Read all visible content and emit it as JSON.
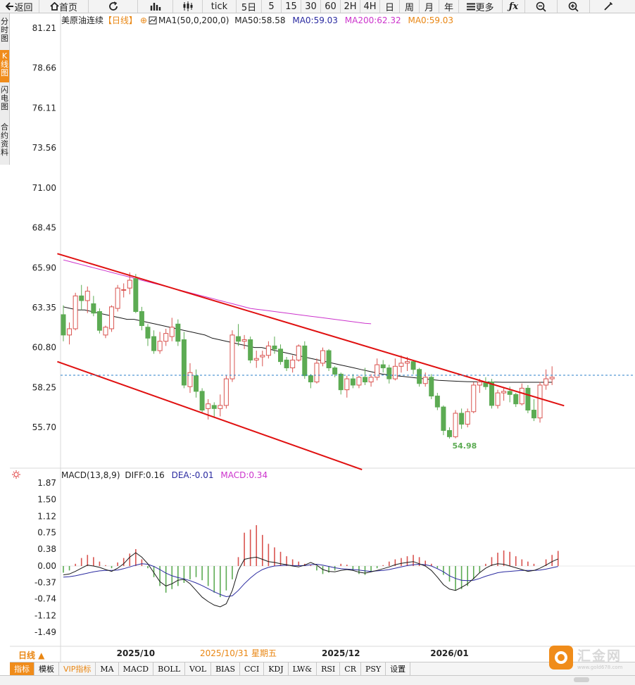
{
  "toolbar": {
    "back": "返回",
    "home": "首页",
    "tick": "tick",
    "day5": "5日",
    "m5": "5",
    "m15": "15",
    "m30": "30",
    "m60": "60",
    "h2": "2H",
    "h4": "4H",
    "day": "日",
    "week": "周",
    "month": "月",
    "year": "年",
    "more": "更多",
    "icons": [
      "back-arrow-icon",
      "home-icon",
      "refresh-icon",
      "bar-chart-icon",
      "candlestick-icon",
      "more-menu-icon",
      "function-icon",
      "zoom-out-icon",
      "zoom-in-icon",
      "draw-pen-icon"
    ]
  },
  "left_nav": [
    "分时图",
    "K线图",
    "闪电图",
    "合约资料"
  ],
  "header": {
    "instrument": "美原油连续",
    "period_tag": "【日线】",
    "ma_setting": "MA1(50,0,200,0)",
    "ma50": "MA50:58.58",
    "ma0_a": "MA0:59.03",
    "ma200": "MA200:62.32",
    "ma0_b": "MA0:59.03"
  },
  "macd_header": {
    "label": "MACD(13,8,9)",
    "diff": "DIFF:0.16",
    "dea": "DEA:-0.01",
    "macd": "MACD:0.34"
  },
  "bottom_tabs": [
    "指标",
    "模板",
    "VIP指标",
    "MA",
    "MACD",
    "BOLL",
    "VOL",
    "BIAS",
    "CCI",
    "KDJ",
    "LW&",
    "RSI",
    "CR",
    "PSY",
    "设置"
  ],
  "period_label": "日线 ▲",
  "logo": {
    "name": "汇金网",
    "url": "www.gold678.com"
  },
  "colors": {
    "up": "#d9534f",
    "down": "#5cab53",
    "ma50": "#1a1a1a",
    "ma200": "#cc33cc",
    "channel": "#e01010",
    "last_price": "#2a7fc9",
    "diff": "#1a1a1a",
    "dea": "#2a2aa0",
    "accent": "#f08c1a"
  },
  "chart_data": [
    {
      "type": "candlestick",
      "title": "美原油连续【日线】",
      "y_ticks": [
        "81.21",
        "78.66",
        "76.11",
        "73.56",
        "71.00",
        "68.45",
        "65.90",
        "63.35",
        "60.80",
        "58.25",
        "55.70"
      ],
      "ylim": [
        52.9,
        82.0
      ],
      "x_labels": [
        {
          "label": "2025/10",
          "index": 12
        },
        {
          "label": "2025/10/31 星期五",
          "index": 29
        },
        {
          "label": "2025/12",
          "index": 46
        },
        {
          "label": "2026/01",
          "index": 64
        }
      ],
      "ohlc": [
        [
          62.9,
          63.5,
          61.2,
          61.6
        ],
        [
          61.6,
          62.4,
          61.0,
          62.0
        ],
        [
          62.0,
          64.3,
          61.9,
          64.1
        ],
        [
          64.1,
          64.8,
          63.2,
          63.8
        ],
        [
          63.8,
          64.7,
          63.0,
          64.4
        ],
        [
          63.6,
          64.1,
          62.8,
          63.0
        ],
        [
          63.1,
          63.3,
          61.7,
          61.9
        ],
        [
          61.6,
          62.2,
          61.4,
          62.1
        ],
        [
          62.0,
          63.5,
          61.8,
          63.4
        ],
        [
          63.3,
          64.8,
          63.1,
          64.6
        ],
        [
          64.5,
          64.9,
          64.0,
          64.5
        ],
        [
          64.6,
          65.6,
          64.2,
          65.1
        ],
        [
          65.2,
          65.5,
          63.0,
          63.1
        ],
        [
          63.1,
          63.4,
          61.9,
          62.2
        ],
        [
          62.1,
          62.3,
          60.9,
          61.4
        ],
        [
          61.5,
          61.9,
          60.4,
          60.6
        ],
        [
          60.6,
          61.8,
          60.4,
          61.2
        ],
        [
          61.2,
          62.0,
          60.9,
          61.7
        ],
        [
          61.5,
          62.7,
          61.2,
          62.1
        ],
        [
          62.3,
          62.6,
          60.9,
          61.2
        ],
        [
          61.3,
          61.8,
          58.2,
          58.4
        ],
        [
          58.3,
          59.8,
          57.9,
          59.2
        ],
        [
          59.0,
          59.4,
          57.6,
          58.0
        ],
        [
          58.0,
          58.2,
          56.6,
          56.8
        ],
        [
          56.9,
          57.5,
          56.2,
          57.2
        ],
        [
          57.1,
          57.3,
          56.3,
          56.9
        ],
        [
          56.9,
          57.8,
          56.4,
          57.1
        ],
        [
          57.1,
          59.0,
          56.9,
          58.8
        ],
        [
          58.8,
          61.9,
          58.6,
          61.6
        ],
        [
          61.5,
          62.3,
          60.9,
          61.2
        ],
        [
          61.2,
          61.6,
          60.7,
          61.3
        ],
        [
          61.3,
          61.5,
          59.8,
          60.0
        ],
        [
          60.0,
          60.6,
          59.5,
          60.1
        ],
        [
          60.2,
          60.6,
          59.6,
          60.3
        ],
        [
          60.3,
          61.2,
          60.1,
          60.9
        ],
        [
          60.9,
          61.5,
          60.4,
          60.7
        ],
        [
          60.7,
          61.0,
          59.7,
          59.9
        ],
        [
          60.0,
          60.2,
          59.3,
          59.5
        ],
        [
          59.5,
          60.3,
          59.2,
          60.0
        ],
        [
          60.0,
          61.0,
          59.9,
          60.9
        ],
        [
          60.9,
          61.2,
          58.8,
          59.0
        ],
        [
          59.0,
          59.1,
          58.2,
          58.6
        ],
        [
          58.6,
          60.1,
          58.5,
          59.8
        ],
        [
          59.8,
          60.8,
          59.6,
          60.6
        ],
        [
          60.6,
          60.7,
          59.3,
          59.5
        ],
        [
          59.5,
          59.6,
          58.9,
          59.1
        ],
        [
          59.1,
          59.2,
          57.8,
          58.1
        ],
        [
          58.1,
          59.0,
          57.6,
          58.8
        ],
        [
          58.8,
          59.1,
          58.2,
          58.4
        ],
        [
          58.4,
          59.0,
          58.2,
          58.9
        ],
        [
          58.9,
          59.5,
          58.4,
          58.6
        ],
        [
          58.6,
          59.1,
          58.3,
          58.9
        ],
        [
          58.9,
          60.1,
          58.7,
          59.7
        ],
        [
          59.7,
          60.0,
          59.2,
          59.5
        ],
        [
          59.5,
          59.7,
          58.5,
          58.8
        ],
        [
          58.8,
          60.1,
          58.7,
          59.6
        ],
        [
          59.6,
          60.3,
          59.2,
          59.8
        ],
        [
          59.8,
          60.2,
          59.3,
          59.9
        ],
        [
          59.9,
          60.0,
          59.1,
          59.4
        ],
        [
          59.4,
          59.5,
          58.3,
          58.5
        ],
        [
          58.5,
          59.2,
          58.3,
          58.9
        ],
        [
          58.9,
          59.1,
          57.5,
          57.7
        ],
        [
          57.7,
          57.9,
          56.8,
          57.0
        ],
        [
          57.0,
          57.1,
          55.2,
          55.5
        ],
        [
          55.5,
          55.7,
          54.98,
          55.1
        ],
        [
          55.1,
          56.8,
          55.0,
          56.6
        ],
        [
          56.6,
          56.9,
          55.6,
          55.9
        ],
        [
          55.9,
          56.9,
          55.7,
          56.7
        ],
        [
          56.7,
          58.6,
          56.6,
          58.4
        ],
        [
          58.4,
          58.8,
          57.9,
          58.6
        ],
        [
          58.6,
          58.9,
          58.1,
          58.3
        ],
        [
          58.6,
          58.8,
          56.9,
          57.1
        ],
        [
          57.1,
          58.1,
          56.9,
          57.9
        ],
        [
          57.9,
          58.2,
          57.4,
          58.0
        ],
        [
          58.0,
          58.3,
          57.3,
          57.8
        ],
        [
          57.8,
          57.9,
          57.0,
          57.2
        ],
        [
          57.2,
          58.5,
          57.1,
          58.2
        ],
        [
          58.2,
          58.4,
          56.6,
          56.8
        ],
        [
          56.8,
          57.5,
          56.1,
          56.3
        ],
        [
          56.3,
          58.6,
          56.0,
          58.4
        ],
        [
          58.4,
          59.4,
          58.1,
          58.8
        ],
        [
          58.8,
          59.6,
          58.4,
          58.9
        ]
      ],
      "ma50": [
        63.4,
        63.3,
        63.2,
        63.2,
        63.1,
        63.0,
        62.9,
        62.8,
        62.7,
        62.6,
        62.6,
        62.5,
        62.4,
        62.3,
        62.2,
        62.1,
        62.0,
        61.9,
        61.8,
        61.7,
        61.6,
        61.4,
        61.3,
        61.2,
        61.1,
        61.0,
        60.9,
        60.8,
        60.8,
        60.7,
        60.6,
        60.5,
        60.4,
        60.3,
        60.2,
        60.1,
        60.0,
        59.9,
        59.8,
        59.7,
        59.6,
        59.5,
        59.4,
        59.3,
        59.2,
        59.1,
        59.05,
        59.0,
        58.95,
        58.9,
        58.85,
        58.8,
        58.75,
        58.7,
        58.68,
        58.66,
        58.64,
        58.62,
        58.61,
        58.6,
        58.6,
        58.59,
        58.58,
        58.58,
        58.58,
        58.58,
        58.58,
        58.58,
        58.58,
        58.58
      ],
      "ma200": [
        66.4,
        66.3,
        66.2,
        66.1,
        66.0,
        65.9,
        65.8,
        65.7,
        65.6,
        65.5,
        65.4,
        65.3,
        65.2,
        65.1,
        65.0,
        64.9,
        64.8,
        64.7,
        64.6,
        64.5,
        64.4,
        64.3,
        64.2,
        64.1,
        64.0,
        63.9,
        63.8,
        63.7,
        63.6,
        63.5,
        63.4,
        63.3,
        63.25,
        63.2,
        63.15,
        63.1,
        63.05,
        63.0,
        62.95,
        62.9,
        62.85,
        62.8,
        62.75,
        62.7,
        62.65,
        62.6,
        62.55,
        62.5,
        62.45,
        62.4,
        62.35,
        62.32
      ],
      "channel_upper": {
        "from": [
          -1.0,
          66.8
        ],
        "to": [
          69.0,
          58.7
        ],
        "extend_to": 83
      },
      "channel_lower": {
        "from": [
          -1.0,
          59.9
        ],
        "to": [
          49.5,
          53.0
        ]
      },
      "last_price": 59.03,
      "min_annotation": {
        "label": "54.98",
        "value": 54.98,
        "index": 64
      }
    },
    {
      "type": "bar+line",
      "title": "MACD(13,8,9)",
      "y_ticks": [
        "1.87",
        "1.50",
        "1.12",
        "0.75",
        "0.38",
        "0.00",
        "-0.37",
        "-0.74",
        "-1.12",
        "-1.49"
      ],
      "ylim": [
        -1.83,
        1.87
      ],
      "macd_hist": [
        -0.15,
        -0.1,
        0.05,
        0.18,
        0.25,
        0.2,
        0.1,
        0.02,
        -0.05,
        0.08,
        0.18,
        0.28,
        0.38,
        0.15,
        -0.05,
        -0.25,
        -0.45,
        -0.6,
        -0.52,
        -0.45,
        -0.38,
        -0.3,
        -0.25,
        -0.32,
        -0.45,
        -0.6,
        -0.7,
        -0.55,
        -0.3,
        0.2,
        0.75,
        0.82,
        0.92,
        0.7,
        0.5,
        0.42,
        0.32,
        0.22,
        0.15,
        0.1,
        0.05,
        0.02,
        -0.1,
        -0.18,
        -0.15,
        -0.1,
        0.05,
        0.03,
        -0.1,
        -0.18,
        -0.2,
        -0.12,
        -0.05,
        0.02,
        0.1,
        0.15,
        0.18,
        0.22,
        0.25,
        0.2,
        0.12,
        0.05,
        -0.05,
        -0.2,
        -0.35,
        -0.55,
        -0.52,
        -0.45,
        -0.3,
        -0.15,
        0.05,
        0.2,
        0.3,
        0.35,
        0.32,
        0.22,
        0.15,
        0.1,
        0.05,
        0.0,
        0.15,
        0.25,
        0.34
      ],
      "diff": [
        -0.2,
        -0.18,
        -0.12,
        -0.05,
        0.02,
        0.0,
        -0.03,
        -0.08,
        -0.12,
        -0.05,
        0.05,
        0.2,
        0.3,
        0.2,
        0.05,
        -0.15,
        -0.35,
        -0.45,
        -0.4,
        -0.32,
        -0.3,
        -0.4,
        -0.55,
        -0.7,
        -0.8,
        -0.88,
        -0.92,
        -0.85,
        -0.55,
        -0.1,
        0.15,
        0.18,
        0.2,
        0.15,
        0.1,
        0.08,
        0.05,
        0.03,
        0.0,
        -0.02,
        0.02,
        0.08,
        0.02,
        -0.08,
        -0.12,
        -0.13,
        -0.1,
        -0.08,
        -0.1,
        -0.14,
        -0.16,
        -0.13,
        -0.1,
        -0.06,
        -0.02,
        0.03,
        0.06,
        0.08,
        0.1,
        0.05,
        0.0,
        -0.1,
        -0.25,
        -0.42,
        -0.52,
        -0.55,
        -0.48,
        -0.4,
        -0.28,
        -0.15,
        -0.05,
        0.02,
        0.05,
        0.04,
        0.0,
        -0.04,
        -0.08,
        -0.12,
        -0.1,
        -0.05,
        0.02,
        0.1,
        0.16
      ],
      "dea": [
        -0.25,
        -0.24,
        -0.22,
        -0.19,
        -0.16,
        -0.13,
        -0.11,
        -0.1,
        -0.1,
        -0.09,
        -0.06,
        -0.02,
        0.02,
        0.05,
        0.04,
        -0.01,
        -0.08,
        -0.16,
        -0.22,
        -0.26,
        -0.29,
        -0.33,
        -0.38,
        -0.44,
        -0.51,
        -0.58,
        -0.64,
        -0.69,
        -0.67,
        -0.55,
        -0.4,
        -0.27,
        -0.16,
        -0.08,
        -0.03,
        0.0,
        0.01,
        0.02,
        0.01,
        0.01,
        0.01,
        0.03,
        0.04,
        0.02,
        -0.01,
        -0.04,
        -0.06,
        -0.07,
        -0.08,
        -0.09,
        -0.11,
        -0.12,
        -0.11,
        -0.1,
        -0.08,
        -0.05,
        -0.02,
        0.01,
        0.03,
        0.04,
        0.03,
        0.0,
        -0.06,
        -0.13,
        -0.22,
        -0.28,
        -0.32,
        -0.33,
        -0.32,
        -0.28,
        -0.23,
        -0.19,
        -0.15,
        -0.13,
        -0.12,
        -0.11,
        -0.1,
        -0.1,
        -0.1,
        -0.09,
        -0.07,
        -0.04,
        -0.01
      ]
    }
  ]
}
